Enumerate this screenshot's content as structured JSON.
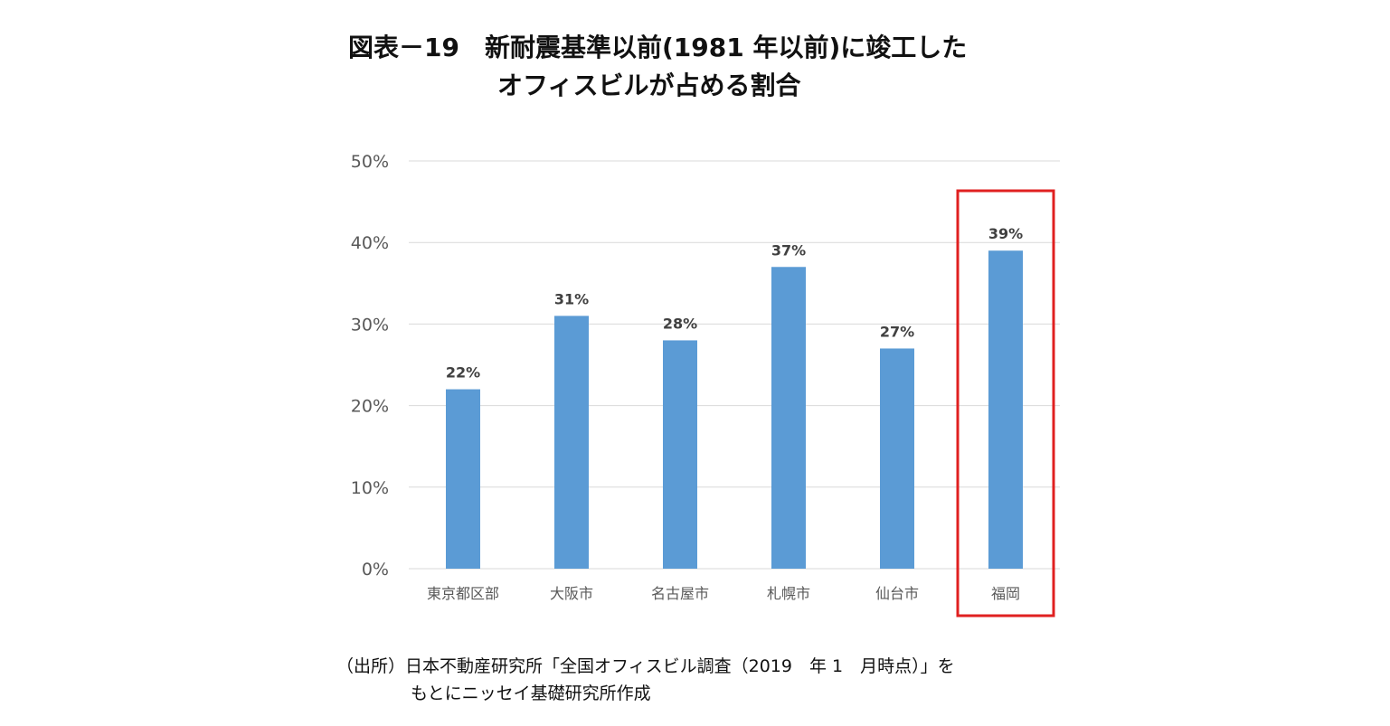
{
  "title": {
    "line1": "図表－19　新耐震基準以前(1981 年以前)に竣工した",
    "line2": "オフィスビルが占める割合"
  },
  "source": {
    "line1": "（出所）日本不動産研究所「全国オフィスビル調査（2019　年 1　月時点）」を",
    "line2": "もとにニッセイ基礎研究所作成"
  },
  "chart_data": {
    "type": "bar",
    "categories": [
      "東京都区部",
      "大阪市",
      "名古屋市",
      "札幌市",
      "仙台市",
      "福岡"
    ],
    "values": [
      22,
      31,
      28,
      37,
      27,
      39
    ],
    "data_labels": [
      "22%",
      "31%",
      "28%",
      "37%",
      "27%",
      "39%"
    ],
    "y_ticks": [
      "0%",
      "10%",
      "20%",
      "30%",
      "40%",
      "50%"
    ],
    "ylim": [
      0,
      50
    ],
    "grid": true,
    "highlighted_category": "福岡",
    "colors": {
      "bar": "#5B9BD5",
      "highlight_box": "#E02020",
      "grid": "#D9D9D9",
      "tick_text": "#595959",
      "label_text": "#404040"
    }
  }
}
